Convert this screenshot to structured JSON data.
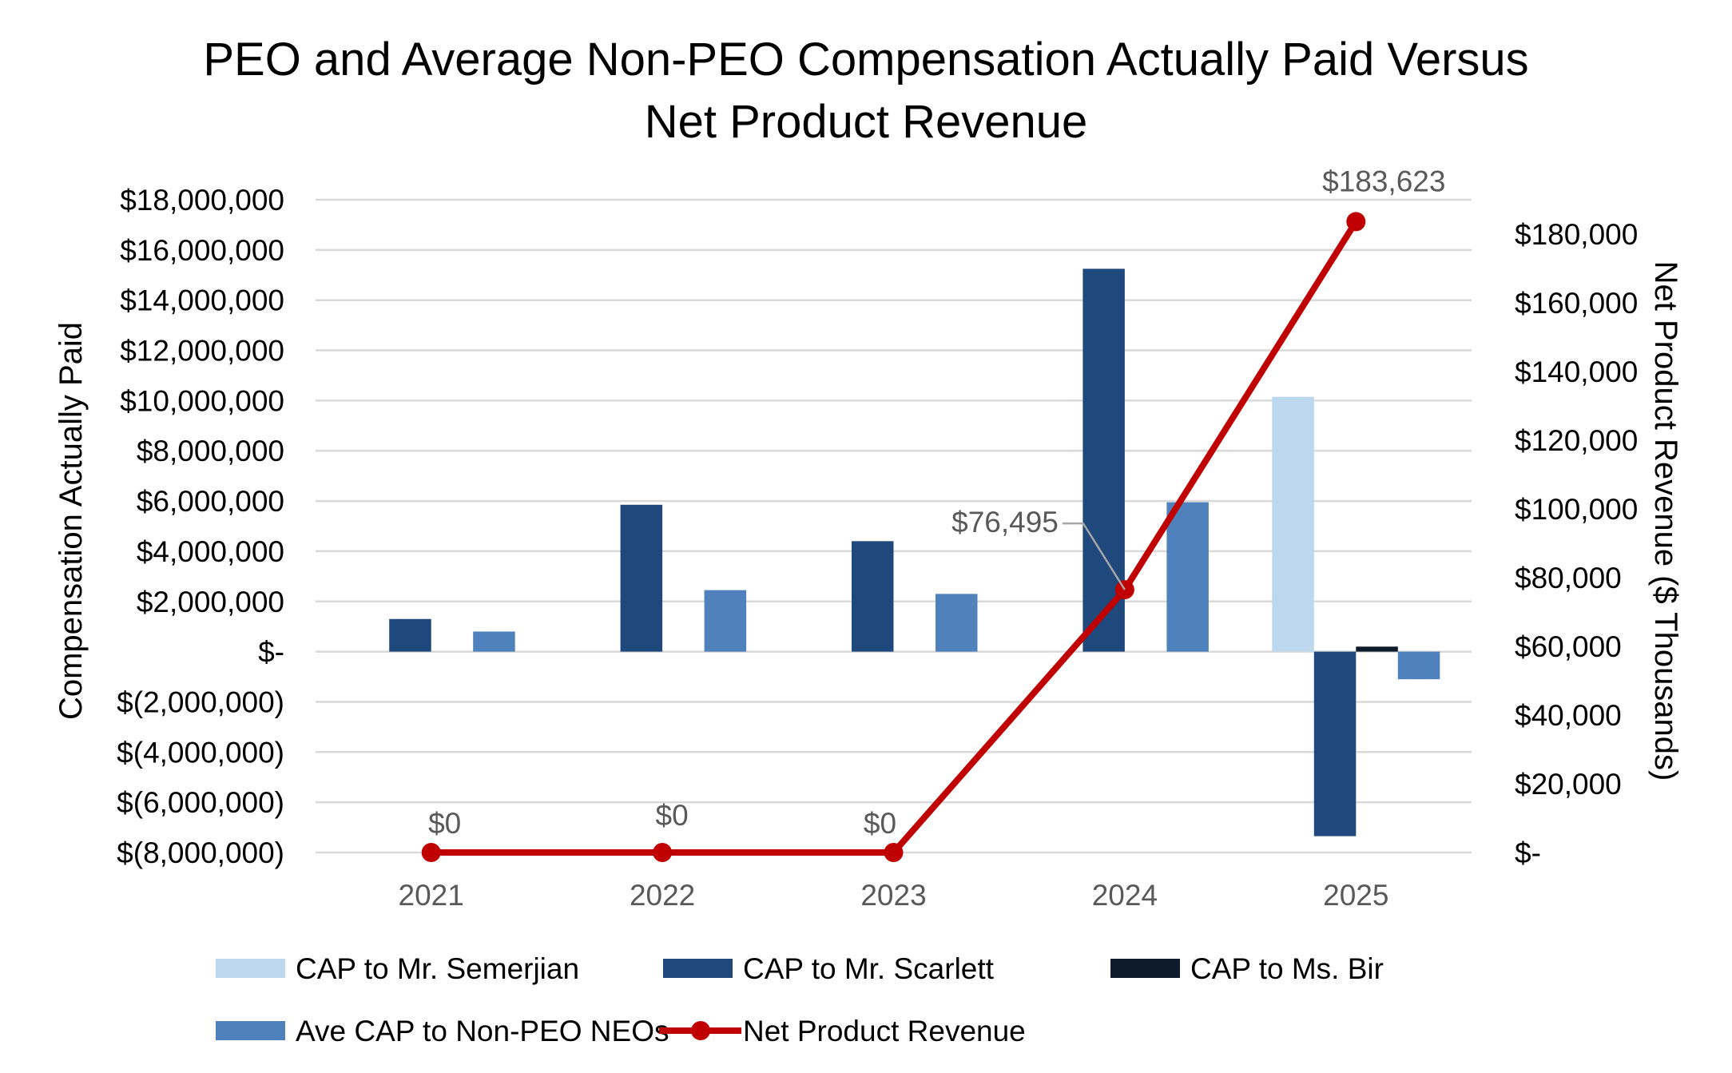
{
  "chart_data": {
    "type": "bar+line",
    "title": "PEO and Average Non-PEO Compensation Actually Paid Versus",
    "title_line2": "Net Product Revenue",
    "ylabel": "Compensation Actually Paid",
    "y2label": "Net Product Revenue ($ Thousands)",
    "categories": [
      "2021",
      "2022",
      "2023",
      "2024",
      "2025"
    ],
    "ylim": [
      -8000000,
      18000000
    ],
    "y_ticks": [
      18000000,
      16000000,
      14000000,
      12000000,
      10000000,
      8000000,
      6000000,
      4000000,
      2000000,
      0,
      -2000000,
      -4000000,
      -6000000,
      -8000000
    ],
    "y_tick_labels": [
      "$18,000,000",
      "$16,000,000",
      "$14,000,000",
      "$12,000,000",
      "$10,000,000",
      "$8,000,000",
      "$6,000,000",
      "$4,000,000",
      "$2,000,000",
      "$-",
      "$(2,000,000)",
      "$(4,000,000)",
      "$(6,000,000)",
      "$(8,000,000)"
    ],
    "y2lim": [
      0,
      180000
    ],
    "y2_ticks": [
      180000,
      160000,
      140000,
      120000,
      100000,
      80000,
      60000,
      40000,
      20000,
      0
    ],
    "y2_tick_labels": [
      "$180,000",
      "$160,000",
      "$140,000",
      "$120,000",
      "$100,000",
      "$80,000",
      "$60,000",
      "$40,000",
      "$20,000",
      "$-"
    ],
    "grid": true,
    "legend_position": "bottom",
    "series": [
      {
        "name": "CAP to Mr. Semerjian",
        "type": "bar",
        "axis": "left",
        "color": "#bdd7ee",
        "values": [
          null,
          null,
          null,
          null,
          10150000
        ]
      },
      {
        "name": "CAP to Mr. Scarlett",
        "type": "bar",
        "axis": "left",
        "color": "#1f497d",
        "values": [
          1300000,
          5850000,
          4400000,
          15250000,
          -7350000
        ]
      },
      {
        "name": "CAP to Ms. Bir",
        "type": "bar",
        "axis": "left",
        "color": "#0d1b2a",
        "values": [
          null,
          null,
          null,
          null,
          200000
        ]
      },
      {
        "name": "Ave CAP to Non-PEO NEOs",
        "type": "bar",
        "axis": "left",
        "color": "#4f81bd",
        "values": [
          800000,
          2450000,
          2300000,
          5950000,
          -1100000
        ]
      },
      {
        "name": "Net Product Revenue",
        "type": "line",
        "axis": "right",
        "color": "#c00000",
        "values": [
          0,
          0,
          0,
          76495,
          183623
        ],
        "data_labels": [
          "$0",
          "$0",
          "$0",
          "$76,495",
          "$183,623"
        ]
      }
    ]
  }
}
